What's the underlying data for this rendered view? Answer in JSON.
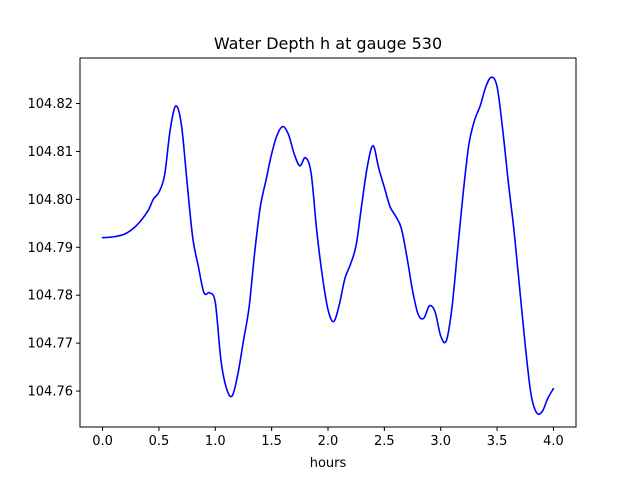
{
  "chart_data": {
    "type": "line",
    "title": "Water Depth h at gauge 530",
    "xlabel": "hours",
    "ylabel": "",
    "xlim": [
      -0.2,
      4.2
    ],
    "ylim": [
      104.7525,
      104.8295
    ],
    "xticks": [
      0.0,
      0.5,
      1.0,
      1.5,
      2.0,
      2.5,
      3.0,
      3.5,
      4.0
    ],
    "xtick_labels": [
      "0.0",
      "0.5",
      "1.0",
      "1.5",
      "2.0",
      "2.5",
      "3.0",
      "3.5",
      "4.0"
    ],
    "yticks": [
      104.76,
      104.77,
      104.78,
      104.79,
      104.8,
      104.81,
      104.82
    ],
    "ytick_labels": [
      "104.76",
      "104.77",
      "104.78",
      "104.79",
      "104.80",
      "104.81",
      "104.82"
    ],
    "grid": false,
    "series": [
      {
        "color": "#0000ff",
        "x": [
          0.0,
          0.1,
          0.2,
          0.3,
          0.4,
          0.45,
          0.5,
          0.55,
          0.6,
          0.65,
          0.7,
          0.75,
          0.8,
          0.85,
          0.9,
          0.95,
          1.0,
          1.05,
          1.1,
          1.15,
          1.2,
          1.25,
          1.3,
          1.35,
          1.4,
          1.45,
          1.5,
          1.55,
          1.6,
          1.65,
          1.7,
          1.75,
          1.8,
          1.85,
          1.9,
          1.95,
          2.0,
          2.05,
          2.1,
          2.15,
          2.2,
          2.25,
          2.3,
          2.35,
          2.4,
          2.45,
          2.5,
          2.55,
          2.6,
          2.65,
          2.7,
          2.75,
          2.8,
          2.85,
          2.9,
          2.95,
          3.0,
          3.05,
          3.1,
          3.15,
          3.2,
          3.25,
          3.3,
          3.35,
          3.4,
          3.45,
          3.5,
          3.55,
          3.6,
          3.65,
          3.7,
          3.75,
          3.8,
          3.85,
          3.9,
          3.95,
          4.0
        ],
        "y": [
          104.792,
          104.7922,
          104.7928,
          104.7945,
          104.7975,
          104.8,
          104.8015,
          104.805,
          104.8145,
          104.8195,
          104.8155,
          104.8035,
          104.792,
          104.786,
          104.7805,
          104.7805,
          104.7785,
          104.7665,
          104.7605,
          104.759,
          104.7635,
          104.7705,
          104.7775,
          104.789,
          104.7985,
          104.804,
          104.8095,
          104.8135,
          104.8152,
          104.8135,
          104.8095,
          104.807,
          104.8087,
          104.8055,
          104.7935,
          104.784,
          104.777,
          104.7745,
          104.778,
          104.7835,
          104.7865,
          104.7905,
          104.799,
          104.807,
          104.8112,
          104.8065,
          104.8025,
          104.7985,
          104.7965,
          104.794,
          104.788,
          104.781,
          104.776,
          104.7752,
          104.7778,
          104.7765,
          104.7715,
          104.7705,
          104.7775,
          104.7895,
          104.8015,
          104.8115,
          104.8165,
          104.8195,
          104.8235,
          104.8255,
          104.8235,
          104.8145,
          104.8035,
          104.7935,
          104.7815,
          104.7695,
          104.7595,
          104.7555,
          104.7557,
          104.7585,
          104.7605
        ]
      }
    ]
  }
}
